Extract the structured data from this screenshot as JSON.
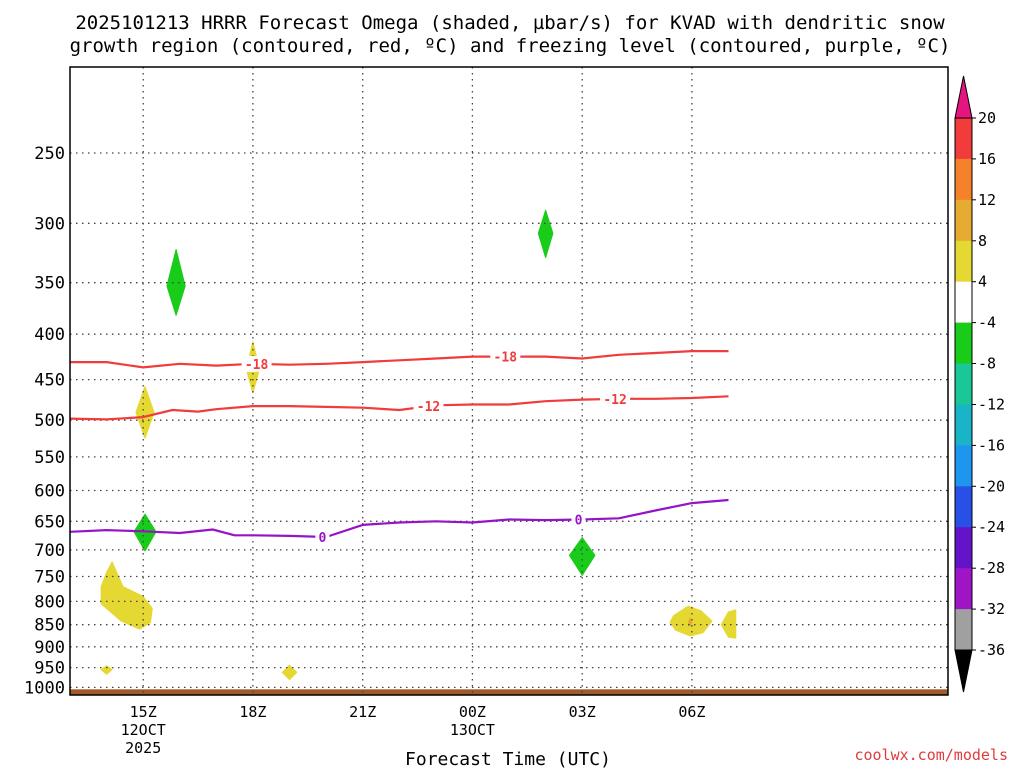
{
  "chart_data": {
    "type": "heatmap",
    "title_lines": [
      "2025101213 HRRR Forecast Omega (shaded, µbar/s) for KVAD with dendritic snow",
      "growth region (contoured, red, ºC) and freezing level (contoured, purple, ºC)"
    ],
    "xlabel": "Forecast Time (UTC)",
    "ylabel": "",
    "credit": "coolwx.com/models",
    "x_hours_range": [
      13,
      37
    ],
    "y_range_hpa": [
      1020,
      200
    ],
    "y_ticks": [
      250,
      300,
      350,
      400,
      450,
      500,
      550,
      600,
      650,
      700,
      750,
      800,
      850,
      900,
      950,
      1000
    ],
    "x_ticks": [
      {
        "hour": 15,
        "lines": [
          "15Z",
          "12OCT",
          "2025"
        ]
      },
      {
        "hour": 18,
        "lines": [
          "18Z"
        ]
      },
      {
        "hour": 21,
        "lines": [
          "21Z"
        ]
      },
      {
        "hour": 24,
        "lines": [
          "00Z",
          "13OCT"
        ]
      },
      {
        "hour": 27,
        "lines": [
          "03Z"
        ]
      },
      {
        "hour": 30,
        "lines": [
          "06Z"
        ]
      }
    ],
    "colorbar": {
      "labels": [
        "20",
        "16",
        "12",
        "8",
        "4",
        "-4",
        "-8",
        "-12",
        "-16",
        "-20",
        "-24",
        "-28",
        "-32",
        "-36"
      ],
      "colors": [
        "#f23c3c",
        "#f5822a",
        "#e6ac32",
        "#e6d832",
        "#ffffff",
        "#19cc19",
        "#19c896",
        "#19b4c8",
        "#1e96f0",
        "#2850e6",
        "#6414c8",
        "#a014c8",
        "#a0a0a0"
      ],
      "top_arrow": "#e6147f",
      "bottom_arrow": "#000000"
    },
    "contours": [
      {
        "label": "-18",
        "color": "#f03c3c",
        "label_hours": [
          18.1,
          24.9
        ],
        "points": [
          [
            13,
            430
          ],
          [
            14,
            430
          ],
          [
            15,
            436
          ],
          [
            16,
            432
          ],
          [
            17,
            434
          ],
          [
            18,
            432
          ],
          [
            19,
            433
          ],
          [
            20,
            432
          ],
          [
            21,
            430
          ],
          [
            22,
            428
          ],
          [
            23,
            426
          ],
          [
            24,
            424
          ],
          [
            25,
            424
          ],
          [
            26,
            424
          ],
          [
            27,
            426
          ],
          [
            28,
            422
          ],
          [
            29,
            420
          ],
          [
            30,
            418
          ],
          [
            31,
            418
          ]
        ]
      },
      {
        "label": "-12",
        "color": "#f03c3c",
        "label_hours": [
          22.8,
          27.9
        ],
        "points": [
          [
            13,
            498
          ],
          [
            14,
            499
          ],
          [
            15,
            496
          ],
          [
            15.8,
            487
          ],
          [
            16.5,
            489
          ],
          [
            17,
            486
          ],
          [
            18,
            482
          ],
          [
            19,
            482
          ],
          [
            20,
            483
          ],
          [
            21,
            484
          ],
          [
            22,
            487
          ],
          [
            23,
            481
          ],
          [
            24,
            480
          ],
          [
            25,
            480
          ],
          [
            26,
            476
          ],
          [
            27,
            474
          ],
          [
            28,
            473
          ],
          [
            29,
            473
          ],
          [
            30,
            472
          ],
          [
            31,
            470
          ]
        ]
      },
      {
        "label": "0",
        "color": "#9614c8",
        "label_hours": [
          19.9,
          26.9
        ],
        "points": [
          [
            13,
            668
          ],
          [
            14,
            665
          ],
          [
            15,
            667
          ],
          [
            16,
            670
          ],
          [
            16.9,
            664
          ],
          [
            17.5,
            674
          ],
          [
            18,
            674
          ],
          [
            19,
            675
          ],
          [
            20,
            677
          ],
          [
            21,
            656
          ],
          [
            22,
            652
          ],
          [
            23,
            650
          ],
          [
            24,
            652
          ],
          [
            25,
            647
          ],
          [
            26,
            648
          ],
          [
            27,
            647
          ],
          [
            28,
            645
          ],
          [
            29,
            632
          ],
          [
            30,
            620
          ],
          [
            31,
            615
          ]
        ]
      }
    ],
    "shaded_regions": [
      {
        "value": "-4 to -8",
        "color": "#19cc19",
        "shape": "diamond",
        "center": [
          15.9,
          353
        ],
        "half_width_hours": 0.25,
        "half_height_hpa": [
          32,
          28
        ]
      },
      {
        "value": "-4 to -8",
        "color": "#19cc19",
        "shape": "diamond",
        "center": [
          26.0,
          308
        ],
        "half_width_hours": 0.2,
        "half_height_hpa": [
          18,
          20
        ]
      },
      {
        "value": "-4 to -8",
        "color": "#19cc19",
        "shape": "diamond",
        "center": [
          15.05,
          668
        ],
        "half_width_hours": 0.3,
        "half_height_hpa": [
          30,
          34
        ]
      },
      {
        "value": "-4 to -8",
        "color": "#19cc19",
        "shape": "diamond",
        "center": [
          27.0,
          710
        ],
        "half_width_hours": 0.35,
        "half_height_hpa": [
          32,
          38
        ]
      },
      {
        "value": "4 to 8",
        "color": "#e6d832",
        "shape": "diamond",
        "center": [
          18.0,
          438
        ],
        "half_width_hours": 0.18,
        "half_height_hpa": [
          30,
          28
        ]
      },
      {
        "value": "4 to 8",
        "color": "#e6d832",
        "shape": "diamond",
        "center": [
          15.05,
          490
        ],
        "half_width_hours": 0.25,
        "half_height_hpa": [
          32,
          34
        ]
      },
      {
        "value": "4 to 8",
        "color": "#e6d832",
        "shape": "diamond",
        "center": [
          14.0,
          955
        ],
        "half_width_hours": 0.15,
        "half_height_hpa": [
          10,
          12
        ]
      },
      {
        "value": "4 to 8",
        "color": "#e6d832",
        "shape": "diamond",
        "center": [
          19.0,
          962
        ],
        "half_width_hours": 0.2,
        "half_height_hpa": [
          18,
          18
        ]
      },
      {
        "value": "4 to 8",
        "color": "#e6d832",
        "shape": "blob",
        "points": [
          [
            14.0,
            742
          ],
          [
            14.15,
            722
          ],
          [
            14.45,
            770
          ],
          [
            15.0,
            790
          ],
          [
            15.25,
            815
          ],
          [
            15.2,
            845
          ],
          [
            14.9,
            860
          ],
          [
            14.4,
            842
          ],
          [
            13.85,
            805
          ],
          [
            13.85,
            770
          ]
        ]
      },
      {
        "value": "4 to 8",
        "color": "#e6d832",
        "shape": "blob",
        "points": [
          [
            29.5,
            830
          ],
          [
            29.9,
            810
          ],
          [
            30.25,
            820
          ],
          [
            30.55,
            842
          ],
          [
            30.3,
            868
          ],
          [
            29.95,
            875
          ],
          [
            29.55,
            862
          ],
          [
            29.4,
            845
          ]
        ]
      },
      {
        "value": "4 to 8",
        "color": "#e6d832",
        "shape": "blob",
        "points": [
          [
            31.0,
            822
          ],
          [
            31.2,
            818
          ],
          [
            31.2,
            880
          ],
          [
            31.0,
            878
          ],
          [
            30.8,
            850
          ]
        ]
      },
      {
        "value": "8 to 12",
        "color": "#e6ac32",
        "shape": "diamond",
        "center": [
          29.95,
          845
        ],
        "half_width_hours": 0.05,
        "half_height_hpa": [
          10,
          8
        ]
      }
    ],
    "ground": {
      "from_hpa": 1005,
      "color": "#a05a2c"
    }
  }
}
